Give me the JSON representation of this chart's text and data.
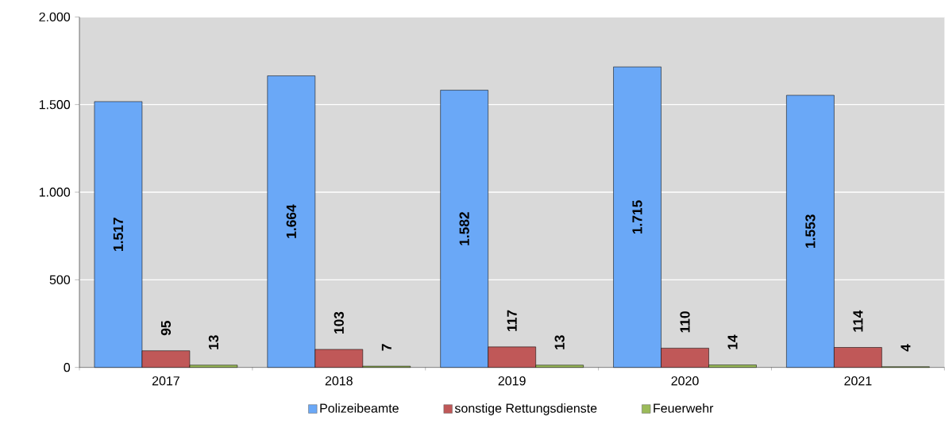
{
  "chart_data": {
    "type": "bar",
    "categories": [
      "2017",
      "2018",
      "2019",
      "2020",
      "2021"
    ],
    "series": [
      {
        "name": "Polizeibeamte",
        "color": "#6aa8f7",
        "values": [
          1517,
          1664,
          1582,
          1715,
          1553
        ],
        "value_labels": [
          "1.517",
          "1.664",
          "1.582",
          "1.715",
          "1.553"
        ]
      },
      {
        "name": "sonstige Rettungsdienste",
        "color": "#c05858",
        "values": [
          95,
          103,
          117,
          110,
          114
        ],
        "value_labels": [
          "95",
          "103",
          "117",
          "110",
          "114"
        ]
      },
      {
        "name": "Feuerwehr",
        "color": "#9bbb59",
        "values": [
          13,
          7,
          13,
          14,
          4
        ],
        "value_labels": [
          "13",
          "7",
          "13",
          "14",
          "4"
        ]
      }
    ],
    "ylim": [
      0,
      2000
    ],
    "yticks": [
      {
        "value": 0,
        "label": "0"
      },
      {
        "value": 500,
        "label": "500"
      },
      {
        "value": 1000,
        "label": "1.000"
      },
      {
        "value": 1500,
        "label": "1.500"
      },
      {
        "value": 2000,
        "label": "2.000"
      }
    ],
    "grid": "y",
    "legend": "bottom"
  }
}
